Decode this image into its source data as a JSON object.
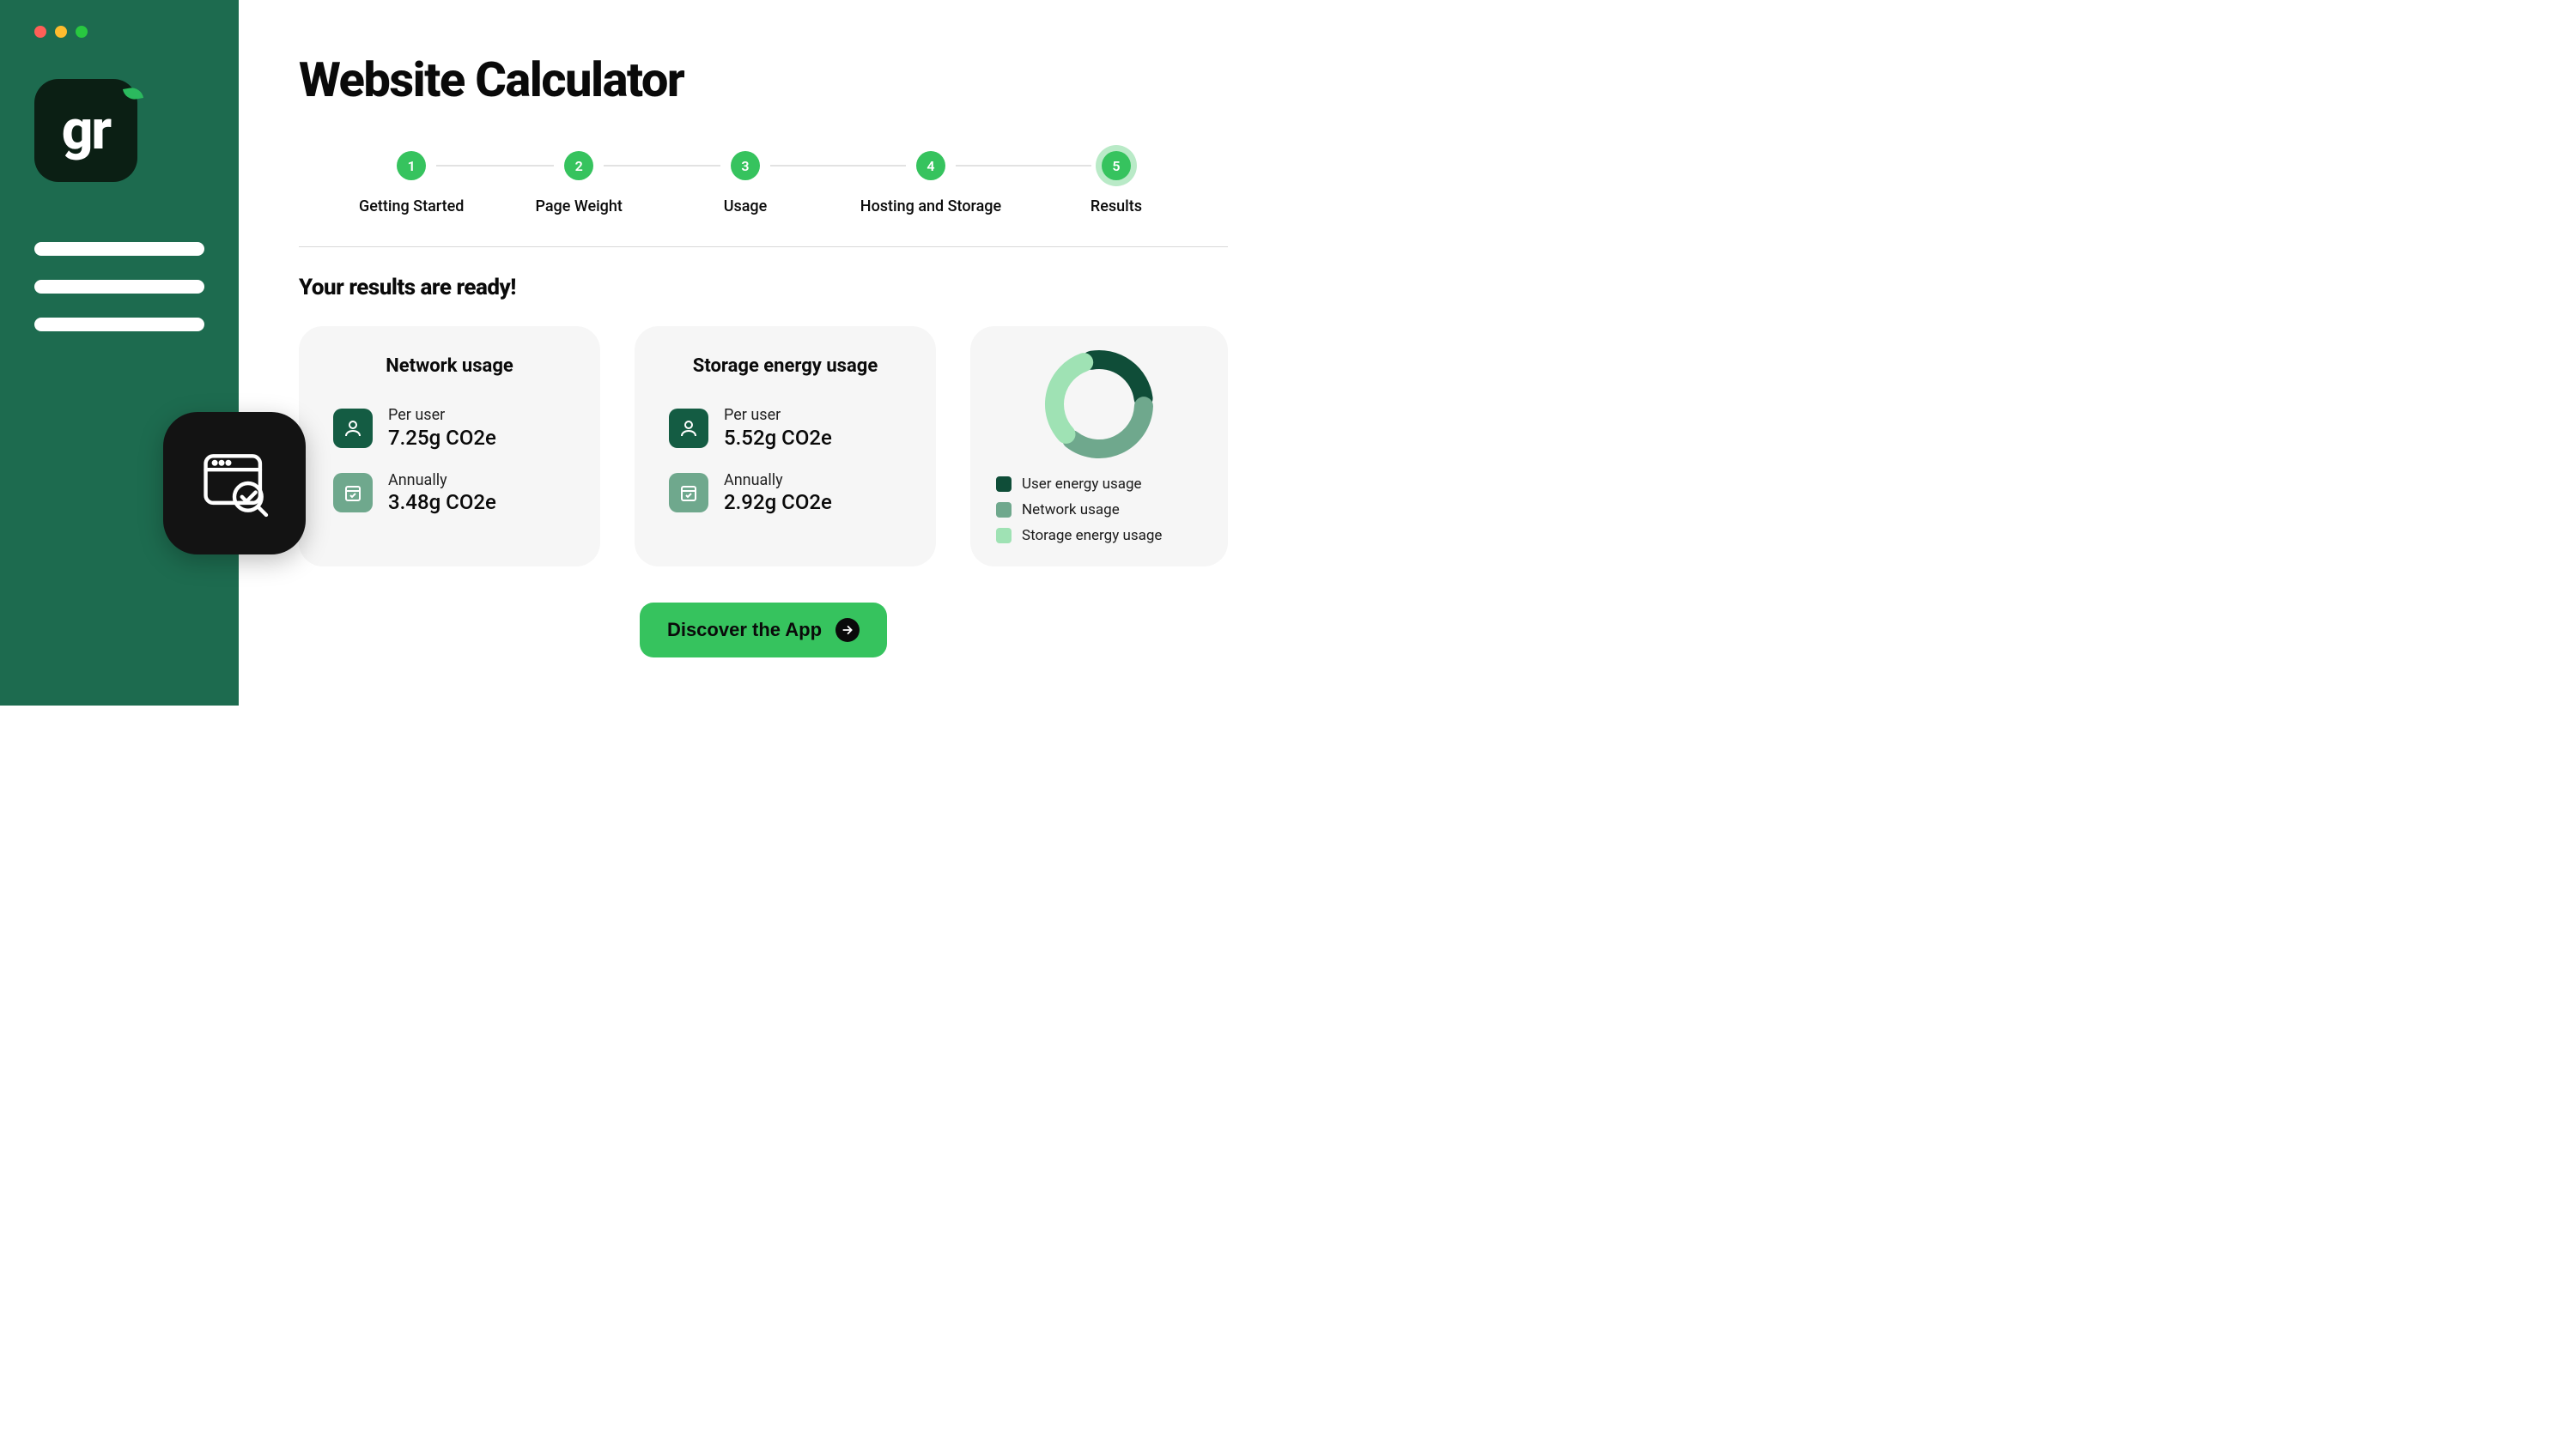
{
  "colors": {
    "sidebar_bg": "#1d6b4f",
    "logo_bg": "#0b1f14",
    "accent_green": "#36c35e",
    "card_bg": "#f6f6f6",
    "text": "#0a0a0a",
    "divider": "#d9d9d9",
    "icon_dark_bg": "#145c43",
    "icon_light_bg": "#6fa88d",
    "float_card_bg": "#131313"
  },
  "window": {
    "traffic_lights": [
      "#ff5f57",
      "#febc2e",
      "#28c840"
    ]
  },
  "sidebar": {
    "logo_text": "gr",
    "menu_placeholder_count": 3
  },
  "header": {
    "title": "Website Calculator",
    "title_fontsize": 56
  },
  "stepper": {
    "active_index": 4,
    "circle_color": "#36c35e",
    "line_color": "#e2e2e2",
    "steps": [
      {
        "num": "1",
        "label": "Getting Started"
      },
      {
        "num": "2",
        "label": "Page Weight"
      },
      {
        "num": "3",
        "label": "Usage"
      },
      {
        "num": "4",
        "label": "Hosting and Storage"
      },
      {
        "num": "5",
        "label": "Results"
      }
    ]
  },
  "results": {
    "heading": "Your results are ready!",
    "cards": [
      {
        "title": "Network usage",
        "metrics": [
          {
            "icon": "user",
            "icon_bg": "#145c43",
            "label": "Per user",
            "value": "7.25g CO2e"
          },
          {
            "icon": "calendar",
            "icon_bg": "#6fa88d",
            "label": "Annually",
            "value": "3.48g CO2e"
          }
        ]
      },
      {
        "title": "Storage energy usage",
        "metrics": [
          {
            "icon": "user",
            "icon_bg": "#145c43",
            "label": "Per user",
            "value": "5.52g CO2e"
          },
          {
            "icon": "calendar",
            "icon_bg": "#6fa88d",
            "label": "Annually",
            "value": "2.92g CO2e"
          }
        ]
      }
    ],
    "donut": {
      "type": "donut",
      "size": 130,
      "thickness": 22,
      "gap_deg": 10,
      "start_angle_deg": -100,
      "background": "#f6f6f6",
      "segments": [
        {
          "label": "User energy usage",
          "value": 28,
          "color": "#0f4d38"
        },
        {
          "label": "Network usage",
          "value": 38,
          "color": "#6fa88d"
        },
        {
          "label": "Storage energy usage",
          "value": 34,
          "color": "#9fe2b4"
        }
      ]
    }
  },
  "cta": {
    "label": "Discover the App",
    "bg": "#36c35e",
    "text_color": "#0a0a0a",
    "arrow_bg": "#0a0a0a"
  }
}
